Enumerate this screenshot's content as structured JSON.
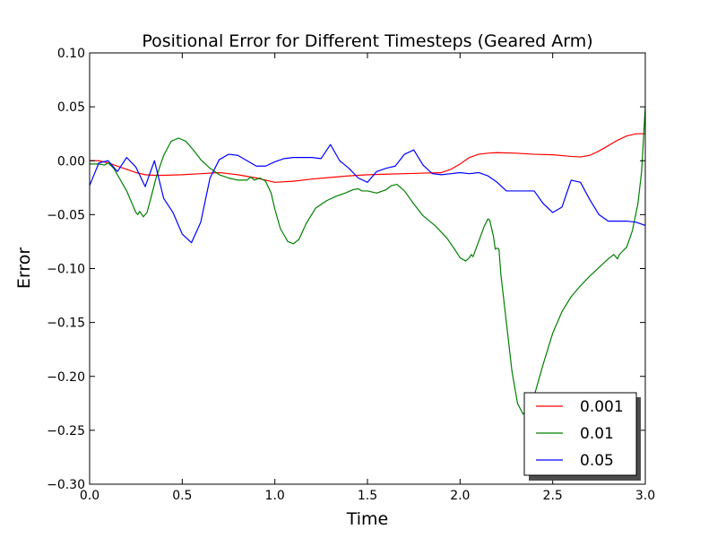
{
  "chart_data": {
    "type": "line",
    "title": "Positional Error for Different Timesteps (Geared Arm)",
    "xlabel": "Time",
    "ylabel": "Error",
    "xlim": [
      0.0,
      3.0
    ],
    "ylim": [
      -0.3,
      0.1
    ],
    "xticks": [
      "0.0",
      "0.5",
      "1.0",
      "1.5",
      "2.0",
      "2.5",
      "3.0"
    ],
    "yticks": [
      "0.10",
      "0.05",
      "0.00",
      "−0.05",
      "−0.10",
      "−0.15",
      "−0.20",
      "−0.25",
      "−0.30"
    ],
    "grid": false,
    "legend_position": "lower-right",
    "series": [
      {
        "name": "0.001",
        "color": "#ff0000",
        "points": [
          [
            0.0,
            0.0
          ],
          [
            0.05,
            0.0
          ],
          [
            0.1,
            -0.002
          ],
          [
            0.15,
            -0.005
          ],
          [
            0.2,
            -0.008
          ],
          [
            0.25,
            -0.011
          ],
          [
            0.3,
            -0.013
          ],
          [
            0.35,
            -0.0135
          ],
          [
            0.4,
            -0.0135
          ],
          [
            0.5,
            -0.013
          ],
          [
            0.6,
            -0.012
          ],
          [
            0.7,
            -0.011
          ],
          [
            0.8,
            -0.013
          ],
          [
            0.9,
            -0.016
          ],
          [
            1.0,
            -0.02
          ],
          [
            1.1,
            -0.019
          ],
          [
            1.2,
            -0.017
          ],
          [
            1.3,
            -0.0155
          ],
          [
            1.4,
            -0.014
          ],
          [
            1.5,
            -0.013
          ],
          [
            1.6,
            -0.0125
          ],
          [
            1.7,
            -0.012
          ],
          [
            1.8,
            -0.0115
          ],
          [
            1.9,
            -0.011
          ],
          [
            1.95,
            -0.008
          ],
          [
            2.0,
            -0.003
          ],
          [
            2.05,
            0.003
          ],
          [
            2.1,
            0.006
          ],
          [
            2.15,
            0.007
          ],
          [
            2.2,
            0.0075
          ],
          [
            2.3,
            0.007
          ],
          [
            2.4,
            0.006
          ],
          [
            2.5,
            0.0055
          ],
          [
            2.6,
            0.004
          ],
          [
            2.65,
            0.0035
          ],
          [
            2.7,
            0.005
          ],
          [
            2.75,
            0.009
          ],
          [
            2.8,
            0.014
          ],
          [
            2.85,
            0.019
          ],
          [
            2.9,
            0.023
          ],
          [
            2.95,
            0.025
          ],
          [
            3.0,
            0.025
          ]
        ]
      },
      {
        "name": "0.01",
        "color": "#008000",
        "points": [
          [
            0.0,
            -0.003
          ],
          [
            0.05,
            -0.003
          ],
          [
            0.08,
            -0.004
          ],
          [
            0.1,
            -0.002
          ],
          [
            0.13,
            -0.007
          ],
          [
            0.16,
            -0.016
          ],
          [
            0.2,
            -0.028
          ],
          [
            0.23,
            -0.04
          ],
          [
            0.25,
            -0.048
          ],
          [
            0.26,
            -0.05
          ],
          [
            0.27,
            -0.047
          ],
          [
            0.29,
            -0.052
          ],
          [
            0.31,
            -0.048
          ],
          [
            0.33,
            -0.035
          ],
          [
            0.36,
            -0.015
          ],
          [
            0.4,
            0.005
          ],
          [
            0.44,
            0.018
          ],
          [
            0.48,
            0.021
          ],
          [
            0.52,
            0.018
          ],
          [
            0.56,
            0.01
          ],
          [
            0.6,
            0.001
          ],
          [
            0.65,
            -0.007
          ],
          [
            0.7,
            -0.013
          ],
          [
            0.75,
            -0.016
          ],
          [
            0.8,
            -0.018
          ],
          [
            0.85,
            -0.018
          ],
          [
            0.87,
            -0.015
          ],
          [
            0.89,
            -0.018
          ],
          [
            0.92,
            -0.016
          ],
          [
            0.95,
            -0.019
          ],
          [
            0.98,
            -0.03
          ],
          [
            1.0,
            -0.045
          ],
          [
            1.03,
            -0.063
          ],
          [
            1.07,
            -0.075
          ],
          [
            1.1,
            -0.077
          ],
          [
            1.13,
            -0.073
          ],
          [
            1.17,
            -0.058
          ],
          [
            1.22,
            -0.044
          ],
          [
            1.28,
            -0.037
          ],
          [
            1.33,
            -0.033
          ],
          [
            1.38,
            -0.03
          ],
          [
            1.42,
            -0.027
          ],
          [
            1.45,
            -0.026
          ],
          [
            1.47,
            -0.028
          ],
          [
            1.5,
            -0.028
          ],
          [
            1.55,
            -0.03
          ],
          [
            1.6,
            -0.027
          ],
          [
            1.63,
            -0.023
          ],
          [
            1.66,
            -0.022
          ],
          [
            1.7,
            -0.028
          ],
          [
            1.75,
            -0.04
          ],
          [
            1.8,
            -0.051
          ],
          [
            1.87,
            -0.061
          ],
          [
            1.93,
            -0.072
          ],
          [
            1.97,
            -0.082
          ],
          [
            2.0,
            -0.09
          ],
          [
            2.03,
            -0.093
          ],
          [
            2.05,
            -0.09
          ],
          [
            2.06,
            -0.087
          ],
          [
            2.07,
            -0.089
          ],
          [
            2.1,
            -0.075
          ],
          [
            2.13,
            -0.061
          ],
          [
            2.15,
            -0.054
          ],
          [
            2.16,
            -0.055
          ],
          [
            2.18,
            -0.07
          ],
          [
            2.19,
            -0.082
          ],
          [
            2.2,
            -0.081
          ],
          [
            2.21,
            -0.082
          ],
          [
            2.22,
            -0.105
          ],
          [
            2.25,
            -0.15
          ],
          [
            2.28,
            -0.195
          ],
          [
            2.31,
            -0.225
          ],
          [
            2.34,
            -0.235
          ],
          [
            2.37,
            -0.23
          ],
          [
            2.4,
            -0.218
          ],
          [
            2.45,
            -0.188
          ],
          [
            2.5,
            -0.16
          ],
          [
            2.55,
            -0.14
          ],
          [
            2.6,
            -0.126
          ],
          [
            2.65,
            -0.116
          ],
          [
            2.7,
            -0.107
          ],
          [
            2.75,
            -0.099
          ],
          [
            2.8,
            -0.091
          ],
          [
            2.83,
            -0.087
          ],
          [
            2.85,
            -0.091
          ],
          [
            2.86,
            -0.087
          ],
          [
            2.9,
            -0.08
          ],
          [
            2.93,
            -0.065
          ],
          [
            2.96,
            -0.04
          ],
          [
            2.98,
            -0.01
          ],
          [
            3.0,
            0.05
          ]
        ]
      },
      {
        "name": "0.05",
        "color": "#0000ff",
        "points": [
          [
            0.0,
            -0.023
          ],
          [
            0.05,
            -0.002
          ],
          [
            0.1,
            0.0
          ],
          [
            0.15,
            -0.01
          ],
          [
            0.2,
            0.003
          ],
          [
            0.25,
            -0.006
          ],
          [
            0.3,
            -0.024
          ],
          [
            0.35,
            0.0
          ],
          [
            0.4,
            -0.035
          ],
          [
            0.45,
            -0.048
          ],
          [
            0.5,
            -0.068
          ],
          [
            0.55,
            -0.076
          ],
          [
            0.6,
            -0.057
          ],
          [
            0.65,
            -0.016
          ],
          [
            0.7,
            0.001
          ],
          [
            0.75,
            0.006
          ],
          [
            0.8,
            0.005
          ],
          [
            0.85,
            0.0
          ],
          [
            0.9,
            -0.005
          ],
          [
            0.95,
            -0.005
          ],
          [
            1.0,
            -0.001
          ],
          [
            1.05,
            0.002
          ],
          [
            1.1,
            0.003
          ],
          [
            1.2,
            0.003
          ],
          [
            1.25,
            0.002
          ],
          [
            1.3,
            0.015
          ],
          [
            1.35,
            0.0
          ],
          [
            1.4,
            -0.007
          ],
          [
            1.45,
            -0.016
          ],
          [
            1.5,
            -0.02
          ],
          [
            1.55,
            -0.01
          ],
          [
            1.6,
            -0.007
          ],
          [
            1.65,
            -0.005
          ],
          [
            1.7,
            0.006
          ],
          [
            1.75,
            0.01
          ],
          [
            1.8,
            -0.004
          ],
          [
            1.85,
            -0.012
          ],
          [
            1.9,
            -0.013
          ],
          [
            1.95,
            -0.012
          ],
          [
            2.0,
            -0.011
          ],
          [
            2.05,
            -0.012
          ],
          [
            2.1,
            -0.011
          ],
          [
            2.15,
            -0.014
          ],
          [
            2.2,
            -0.02
          ],
          [
            2.25,
            -0.028
          ],
          [
            2.3,
            -0.028
          ],
          [
            2.35,
            -0.028
          ],
          [
            2.4,
            -0.028
          ],
          [
            2.45,
            -0.04
          ],
          [
            2.5,
            -0.048
          ],
          [
            2.55,
            -0.043
          ],
          [
            2.6,
            -0.018
          ],
          [
            2.65,
            -0.02
          ],
          [
            2.7,
            -0.036
          ],
          [
            2.75,
            -0.05
          ],
          [
            2.8,
            -0.056
          ],
          [
            2.85,
            -0.056
          ],
          [
            2.9,
            -0.056
          ],
          [
            2.95,
            -0.057
          ],
          [
            3.0,
            -0.06
          ]
        ]
      }
    ]
  }
}
